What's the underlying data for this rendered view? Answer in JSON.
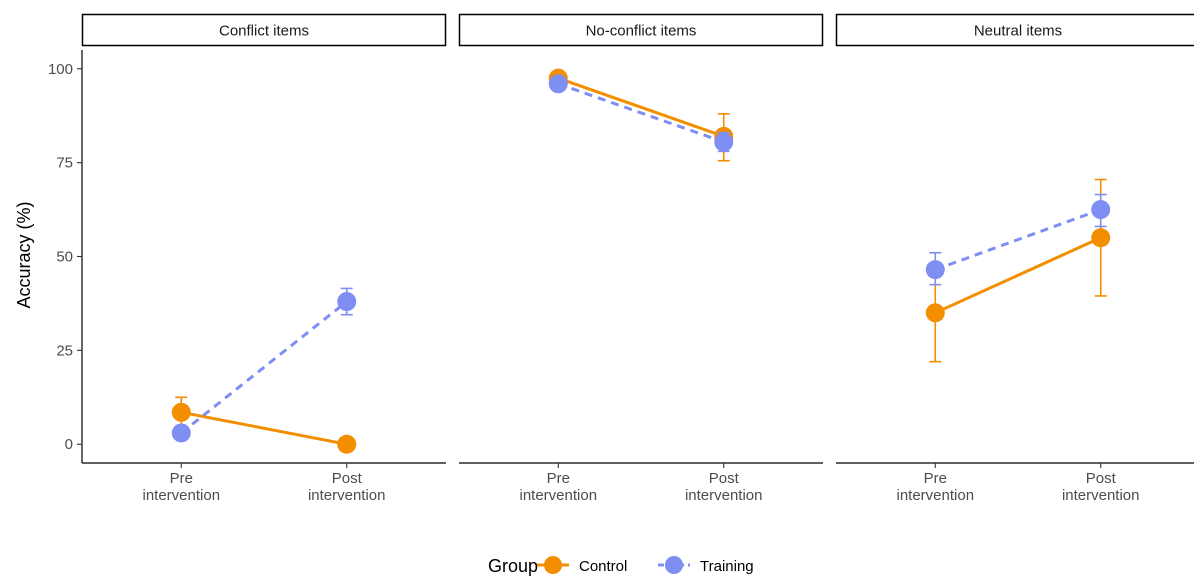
{
  "chart_data": {
    "type": "line",
    "ylabel": "Accuracy (%)",
    "ylim": [
      -5,
      105
    ],
    "yticks": [
      0,
      25,
      50,
      75,
      100
    ],
    "categories": [
      [
        "Pre",
        "intervention"
      ],
      [
        "Post",
        "intervention"
      ]
    ],
    "grid": false,
    "legend": {
      "title": "Group",
      "placement": "bottom",
      "entries": [
        "Control",
        "Training"
      ]
    },
    "colors": {
      "Control": "#f28e00",
      "Training": "#7f8ef2"
    },
    "panels": [
      {
        "title": "Conflict items",
        "series": [
          {
            "name": "Control",
            "values": [
              8.5,
              0
            ],
            "errors": [
              [
                4.5,
                12.5
              ],
              [
                0,
                0
              ]
            ]
          },
          {
            "name": "Training",
            "values": [
              3,
              38
            ],
            "errors": [
              [
                3,
                3
              ],
              [
                34.5,
                41.5
              ]
            ]
          }
        ]
      },
      {
        "title": "No-conflict items",
        "series": [
          {
            "name": "Control",
            "values": [
              97.5,
              82
            ],
            "errors": [
              [
                96.5,
                99
              ],
              [
                75.5,
                88
              ]
            ]
          },
          {
            "name": "Training",
            "values": [
              96,
              80.5
            ],
            "errors": [
              [
                96,
                96
              ],
              [
                78,
                83
              ]
            ]
          }
        ]
      },
      {
        "title": "Neutral items",
        "series": [
          {
            "name": "Control",
            "values": [
              35,
              55
            ],
            "errors": [
              [
                22,
                48
              ],
              [
                39.5,
                70.5
              ]
            ]
          },
          {
            "name": "Training",
            "values": [
              46.5,
              62.5
            ],
            "errors": [
              [
                42.5,
                51
              ],
              [
                58,
                66.5
              ]
            ]
          }
        ]
      }
    ]
  }
}
